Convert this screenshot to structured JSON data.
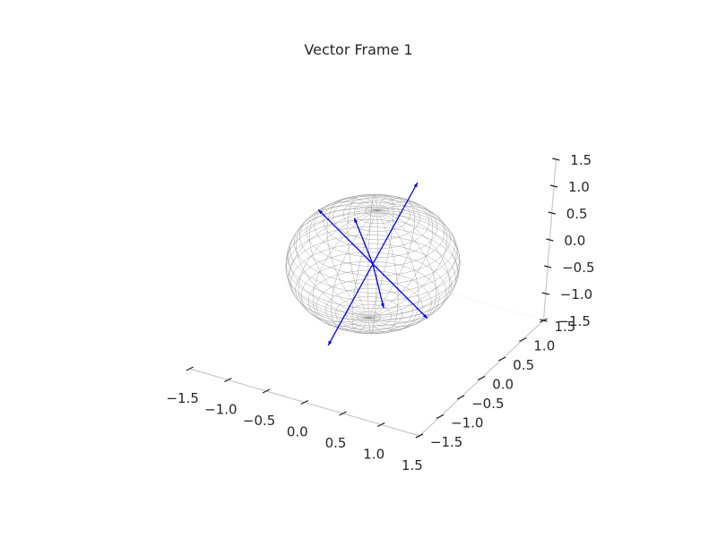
{
  "chart_data": {
    "type": "scatter",
    "projection": "3d",
    "title": "Vector Frame 1",
    "xlabel": "",
    "ylabel": "",
    "zlabel": "",
    "xlim": [
      -1.5,
      1.5
    ],
    "ylim": [
      -1.5,
      1.5
    ],
    "zlim": [
      -1.5,
      1.5
    ],
    "ticks": [
      -1.5,
      -1.0,
      -0.5,
      0.0,
      0.5,
      1.0,
      1.5
    ],
    "x_tick_labels": [
      "−1.5",
      "−1.0",
      "−0.5",
      "0.0",
      "0.5",
      "1.0",
      "1.5"
    ],
    "y_tick_labels": [
      "−1.5",
      "−1.0",
      "−0.5",
      "0.0",
      "0.5",
      "1.0",
      "1.5"
    ],
    "z_tick_labels": [
      "−1.5",
      "−1.0",
      "−0.5",
      "0.0",
      "0.5",
      "1.0",
      "1.5"
    ],
    "sphere": {
      "shape": "unit sphere wireframe",
      "radius": 1,
      "color": "#888888"
    },
    "vectors_origin": [
      0,
      0,
      0
    ],
    "vectors": [
      {
        "end": [
          -0.65,
          0.75,
          0.05
        ]
      },
      {
        "end": [
          0.55,
          -0.75,
          -0.05
        ]
      },
      {
        "end": [
          -0.75,
          0.0,
          0.7
        ]
      },
      {
        "end": [
          0.75,
          0.0,
          -0.7
        ]
      },
      {
        "end": [
          0.0,
          1.0,
          0.8
        ]
      },
      {
        "end": [
          0.0,
          -1.0,
          -0.8
        ]
      }
    ],
    "vector_color": "#0000ee",
    "grid": false,
    "legend": "none"
  }
}
